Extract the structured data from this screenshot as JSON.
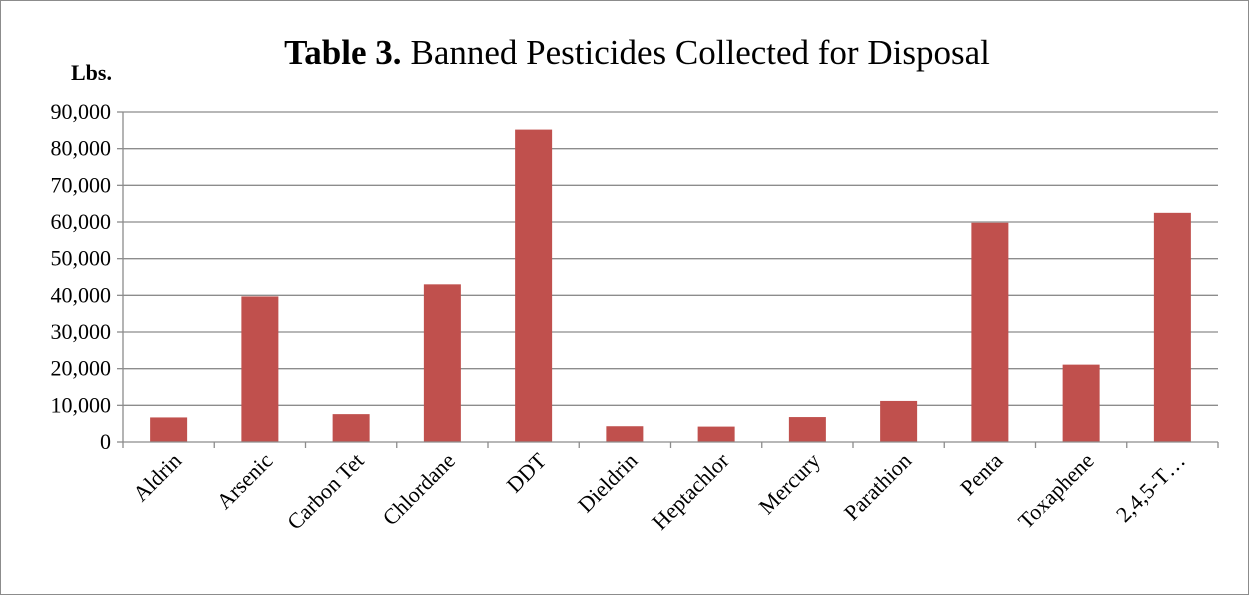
{
  "chart_data": {
    "type": "bar",
    "title_prefix": "Table 3.",
    "title": "Banned Pesticides Collected for Disposal",
    "ylabel": "Lbs.",
    "xlabel": "",
    "categories": [
      "Aldrin",
      "Arsenic",
      "Carbon Tet",
      "Chlordane",
      "DDT",
      "Dieldrin",
      "Heptachlor",
      "Mercury",
      "Parathion",
      "Penta",
      "Toxaphene",
      "2,4,5-T…"
    ],
    "values": [
      6700,
      39700,
      7600,
      43000,
      85200,
      4300,
      4200,
      6800,
      11200,
      59800,
      21100,
      62500
    ],
    "ylim": [
      0,
      90000
    ],
    "y_ticks": [
      "0",
      "10,000",
      "20,000",
      "30,000",
      "40,000",
      "50,000",
      "60,000",
      "70,000",
      "80,000",
      "90,000"
    ],
    "grid": true,
    "bar_color": "#c0504d"
  }
}
